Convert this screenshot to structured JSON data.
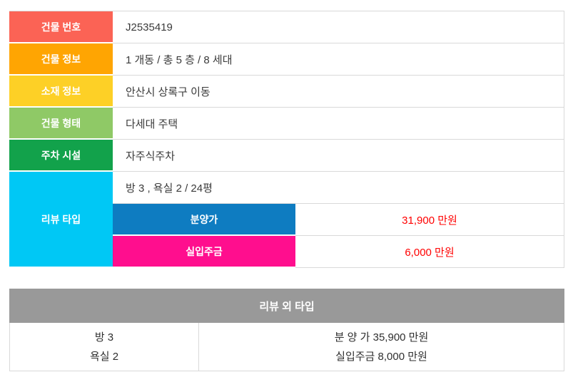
{
  "building_table": {
    "rows": [
      {
        "label": "건물 번호",
        "value": "J2535419",
        "color": "#fb6355"
      },
      {
        "label": "건물 정보",
        "value": "1 개동 / 총 5 층 / 8 세대",
        "color": "#ffa502"
      },
      {
        "label": "소재 정보",
        "value": "안산시 상록구 이동",
        "color": "#fdd026"
      },
      {
        "label": "건물 형태",
        "value": "다세대 주택",
        "color": "#8fc966"
      },
      {
        "label": "주차 시설",
        "value": "자주식주차",
        "color": "#12a24b"
      }
    ],
    "review_type": {
      "label": "리뷰 타입",
      "color": "#00c8f5",
      "summary": "방 3 , 욕실 2 / 24평",
      "prices": [
        {
          "label": "분양가",
          "color": "#0e7cc1",
          "value": "31,900 만원"
        },
        {
          "label": "실입주금",
          "color": "#ff0e8e",
          "value": "6,000 만원"
        }
      ]
    }
  },
  "other_table": {
    "header": "리뷰 외 타입",
    "header_color": "#999999",
    "rooms_lines": [
      "방 3",
      "욕실 2"
    ],
    "price_lines": [
      "분 양 가 35,900 만원",
      "실입주금 8,000 만원"
    ]
  },
  "colors": {
    "border": "#d9d9d9",
    "value_text": "#3a3a3a",
    "price_text": "#ff0000"
  }
}
